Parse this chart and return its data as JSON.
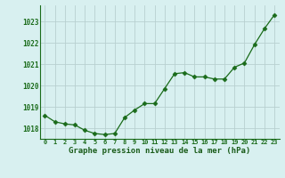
{
  "x": [
    0,
    1,
    2,
    3,
    4,
    5,
    6,
    7,
    8,
    9,
    10,
    11,
    12,
    13,
    14,
    15,
    16,
    17,
    18,
    19,
    20,
    21,
    22,
    23
  ],
  "y": [
    1018.6,
    1018.3,
    1018.2,
    1018.15,
    1017.9,
    1017.75,
    1017.7,
    1017.75,
    1018.5,
    1018.85,
    1019.15,
    1019.15,
    1019.85,
    1020.55,
    1020.6,
    1020.4,
    1020.4,
    1020.3,
    1020.3,
    1020.85,
    1021.05,
    1021.9,
    1022.65,
    1023.3
  ],
  "ylim": [
    1017.5,
    1023.75
  ],
  "yticks": [
    1018,
    1019,
    1020,
    1021,
    1022,
    1023
  ],
  "xticks": [
    0,
    1,
    2,
    3,
    4,
    5,
    6,
    7,
    8,
    9,
    10,
    11,
    12,
    13,
    14,
    15,
    16,
    17,
    18,
    19,
    20,
    21,
    22,
    23
  ],
  "xlabel": "Graphe pression niveau de la mer (hPa)",
  "line_color": "#1a6b1a",
  "marker": "D",
  "marker_size": 2.5,
  "bg_color": "#d8f0f0",
  "grid_color": "#b8d0d0",
  "xlabel_color": "#1a5c1a",
  "tick_color": "#1a6b1a"
}
